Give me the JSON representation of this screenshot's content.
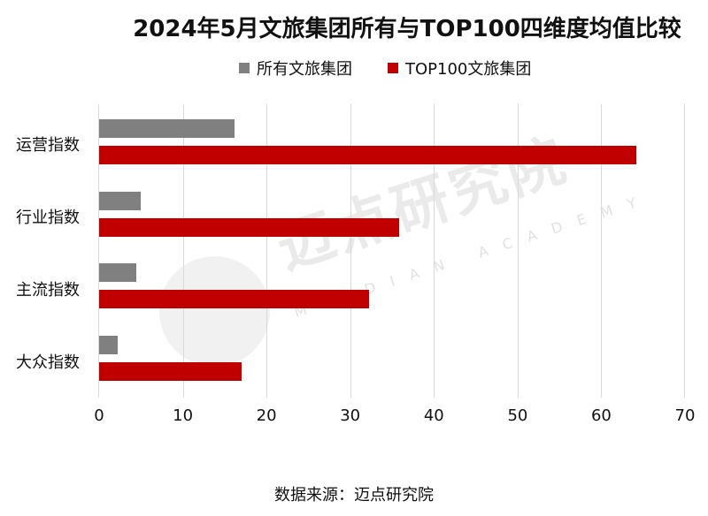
{
  "chart_data": {
    "type": "bar",
    "orientation": "horizontal",
    "title": "2024年5月文旅集团所有与TOP100四维度均值比较",
    "categories": [
      "运营指数",
      "行业指数",
      "主流指数",
      "大众指数"
    ],
    "series": [
      {
        "name": "所有文旅集团",
        "color": "#808080",
        "values": [
          16.2,
          5.0,
          4.4,
          2.2
        ]
      },
      {
        "name": "TOP100文旅集团",
        "color": "#C00000",
        "values": [
          64.2,
          35.8,
          32.2,
          17.0
        ]
      }
    ],
    "xlabel": "",
    "ylabel": "",
    "xlim": [
      0,
      70
    ],
    "xticks": [
      "0",
      "10",
      "20",
      "30",
      "40",
      "50",
      "60",
      "70"
    ],
    "grid": true,
    "legend_position": "top"
  },
  "source_note": "数据来源：迈点研究院",
  "watermark": {
    "main": "迈点研究院",
    "sub": "MAIDIAN ACADEMY"
  }
}
